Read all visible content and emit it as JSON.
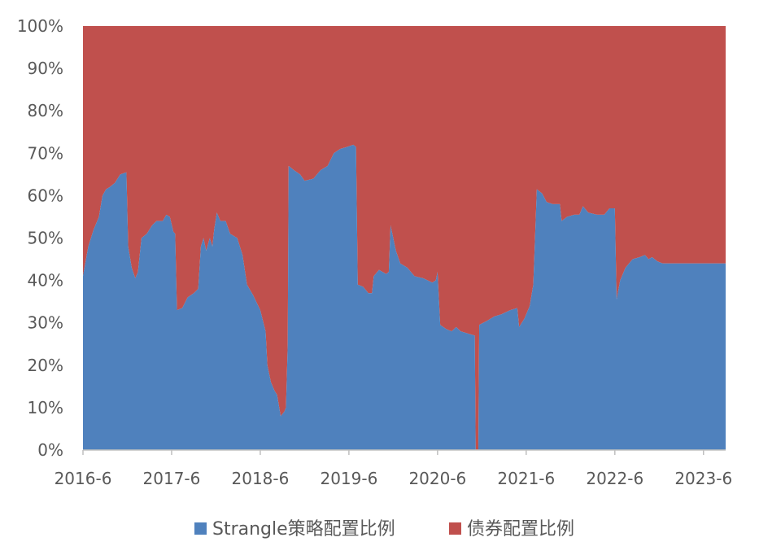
{
  "chart_data": {
    "type": "area",
    "stacked": true,
    "percent_stacked": true,
    "x_tick_labels": [
      "2016-6",
      "2017-6",
      "2018-6",
      "2019-6",
      "2020-6",
      "2021-6",
      "2022-6",
      "2023-6"
    ],
    "y_tick_labels": [
      "0%",
      "10%",
      "20%",
      "30%",
      "40%",
      "50%",
      "60%",
      "70%",
      "80%",
      "90%",
      "100%"
    ],
    "ylim": [
      0,
      100
    ],
    "xlim": [
      2016.5,
      2023.75
    ],
    "grid": false,
    "legend_position": "bottom",
    "series": [
      {
        "name": "Strangle策略配置比例",
        "color": "#4F81BD",
        "points": [
          [
            2016.5,
            41
          ],
          [
            2016.56,
            48
          ],
          [
            2016.62,
            52
          ],
          [
            2016.68,
            55
          ],
          [
            2016.72,
            60
          ],
          [
            2016.76,
            61.5
          ],
          [
            2016.8,
            62
          ],
          [
            2016.86,
            63
          ],
          [
            2016.92,
            65
          ],
          [
            2016.99,
            65.5
          ],
          [
            2017.01,
            48
          ],
          [
            2017.05,
            43
          ],
          [
            2017.09,
            40.5
          ],
          [
            2017.12,
            42
          ],
          [
            2017.16,
            50
          ],
          [
            2017.22,
            51
          ],
          [
            2017.28,
            53
          ],
          [
            2017.33,
            54
          ],
          [
            2017.4,
            54
          ],
          [
            2017.44,
            55.5
          ],
          [
            2017.48,
            55
          ],
          [
            2017.52,
            51.5
          ],
          [
            2017.54,
            51
          ],
          [
            2017.56,
            33
          ],
          [
            2017.62,
            33.5
          ],
          [
            2017.68,
            36
          ],
          [
            2017.75,
            37
          ],
          [
            2017.8,
            38
          ],
          [
            2017.83,
            48
          ],
          [
            2017.86,
            50
          ],
          [
            2017.89,
            47
          ],
          [
            2017.93,
            50
          ],
          [
            2017.96,
            48
          ],
          [
            2017.98,
            52
          ],
          [
            2018.01,
            56
          ],
          [
            2018.05,
            54
          ],
          [
            2018.11,
            54
          ],
          [
            2018.16,
            51
          ],
          [
            2018.24,
            50
          ],
          [
            2018.3,
            46
          ],
          [
            2018.35,
            39
          ],
          [
            2018.42,
            36.5
          ],
          [
            2018.5,
            33
          ],
          [
            2018.56,
            28
          ],
          [
            2018.58,
            20
          ],
          [
            2018.62,
            16
          ],
          [
            2018.66,
            14
          ],
          [
            2018.69,
            13
          ],
          [
            2018.73,
            8
          ],
          [
            2018.77,
            9
          ],
          [
            2018.79,
            10
          ],
          [
            2018.81,
            25
          ],
          [
            2018.82,
            67
          ],
          [
            2018.88,
            66
          ],
          [
            2018.95,
            65
          ],
          [
            2019.0,
            63.5
          ],
          [
            2019.1,
            64
          ],
          [
            2019.18,
            66
          ],
          [
            2019.26,
            67
          ],
          [
            2019.33,
            70
          ],
          [
            2019.4,
            71
          ],
          [
            2019.48,
            71.5
          ],
          [
            2019.55,
            72
          ],
          [
            2019.58,
            71.5
          ],
          [
            2019.6,
            39
          ],
          [
            2019.66,
            38.5
          ],
          [
            2019.72,
            37
          ],
          [
            2019.76,
            37
          ],
          [
            2019.78,
            41
          ],
          [
            2019.84,
            42.5
          ],
          [
            2019.92,
            41.5
          ],
          [
            2019.95,
            42
          ],
          [
            2019.97,
            53
          ],
          [
            2020.03,
            47
          ],
          [
            2020.08,
            44
          ],
          [
            2020.16,
            43
          ],
          [
            2020.24,
            41
          ],
          [
            2020.34,
            40.5
          ],
          [
            2020.44,
            39.5
          ],
          [
            2020.48,
            40
          ],
          [
            2020.5,
            42
          ],
          [
            2020.53,
            29.5
          ],
          [
            2020.6,
            28.5
          ],
          [
            2020.66,
            28
          ],
          [
            2020.71,
            29
          ],
          [
            2020.76,
            28
          ],
          [
            2020.84,
            27.5
          ],
          [
            2020.92,
            27
          ],
          [
            2020.93,
            0
          ],
          [
            2020.96,
            0
          ],
          [
            2020.97,
            29.5
          ],
          [
            2021.06,
            30.5
          ],
          [
            2021.14,
            31.5
          ],
          [
            2021.22,
            32
          ],
          [
            2021.32,
            33
          ],
          [
            2021.4,
            33.5
          ],
          [
            2021.42,
            29
          ],
          [
            2021.48,
            31
          ],
          [
            2021.54,
            34
          ],
          [
            2021.58,
            39
          ],
          [
            2021.62,
            61.5
          ],
          [
            2021.68,
            60.5
          ],
          [
            2021.73,
            58.5
          ],
          [
            2021.8,
            58
          ],
          [
            2021.88,
            58
          ],
          [
            2021.9,
            54
          ],
          [
            2021.96,
            55
          ],
          [
            2022.04,
            55.5
          ],
          [
            2022.1,
            55.5
          ],
          [
            2022.14,
            57.5
          ],
          [
            2022.2,
            56
          ],
          [
            2022.3,
            55.5
          ],
          [
            2022.38,
            55.5
          ],
          [
            2022.44,
            57
          ],
          [
            2022.5,
            57
          ],
          [
            2022.52,
            35.5
          ],
          [
            2022.56,
            40
          ],
          [
            2022.62,
            43
          ],
          [
            2022.7,
            45
          ],
          [
            2022.78,
            45.5
          ],
          [
            2022.84,
            46
          ],
          [
            2022.88,
            45
          ],
          [
            2022.92,
            45.5
          ],
          [
            2022.98,
            44.5
          ],
          [
            2023.04,
            44
          ],
          [
            2023.75,
            44
          ]
        ]
      },
      {
        "name": "债券配置比例",
        "color": "#C0504D",
        "note_complement": true
      }
    ]
  }
}
